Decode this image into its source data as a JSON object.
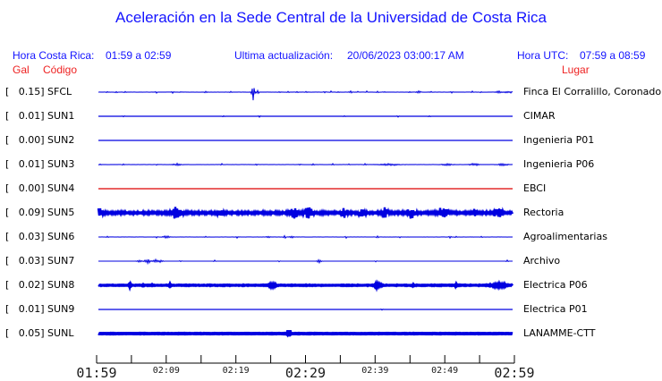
{
  "title": "Aceleración en la Sede Central de la Universidad de Costa Rica",
  "header": {
    "hora_cr_label": "Hora Costa Rica:",
    "hora_cr_value": "01:59 a 02:59",
    "update_label": "Ultima actualización:",
    "update_value": "20/06/2023 03:00:17 AM",
    "hora_utc_label": "Hora UTC:",
    "hora_utc_value": "07:59 a 08:59"
  },
  "columns": {
    "gal": "Gal",
    "codigo": "Código",
    "lugar": "Lugar"
  },
  "colors": {
    "text_blue": "#1414ff",
    "text_red": "#ee2222",
    "trace_blue": "#0000e0",
    "trace_red": "#dd0000",
    "axis_black": "#000000"
  },
  "chart_data": {
    "type": "line",
    "subtype": "seismogram-multitrace",
    "title": "Aceleración en la Sede Central de la Universidad de Costa Rica",
    "time_range_local": [
      "01:59",
      "02:59"
    ],
    "time_range_utc": [
      "07:59",
      "08:59"
    ],
    "x_axis": {
      "tick_interval_minutes": 5,
      "tick_count": 13,
      "labels": [
        {
          "text": "01:59",
          "size": "big"
        },
        {
          "text": "02:09",
          "size": "small"
        },
        {
          "text": "02:19",
          "size": "small"
        },
        {
          "text": "02:29",
          "size": "big"
        },
        {
          "text": "02:39",
          "size": "small"
        },
        {
          "text": "02:49",
          "size": "small"
        },
        {
          "text": "02:59",
          "size": "big"
        }
      ]
    },
    "events_format": "[x_px_from_trace_start, peak_amplitude_px, width_px]",
    "stations": [
      {
        "gal_label": "[   0.15]",
        "gal": 0.15,
        "code": "SFCL",
        "place": "Finca El Corralillo, Coronado",
        "color": "blue",
        "thickness": 1,
        "noise": 0.25,
        "events": [
          [
            10,
            1,
            1
          ],
          [
            20,
            1,
            1
          ],
          [
            30,
            0.8,
            1
          ],
          [
            65,
            0.9,
            1
          ],
          [
            83,
            1,
            1
          ],
          [
            92,
            1,
            1
          ],
          [
            120,
            0.9,
            1
          ],
          [
            148,
            1.1,
            1
          ],
          [
            173,
            9,
            1.6
          ],
          [
            178,
            3,
            1
          ],
          [
            202,
            1,
            1
          ],
          [
            212,
            1,
            1
          ],
          [
            222,
            1,
            1
          ],
          [
            232,
            0.9,
            1
          ],
          [
            253,
            1,
            1
          ],
          [
            260,
            1,
            1
          ],
          [
            268,
            1,
            1
          ],
          [
            282,
            1.2,
            1.5
          ],
          [
            290,
            1,
            1
          ],
          [
            300,
            1,
            1
          ],
          [
            312,
            1,
            1
          ],
          [
            320,
            0.9,
            1
          ],
          [
            348,
            1,
            1
          ],
          [
            358,
            1.4,
            2
          ],
          [
            372,
            1,
            1
          ],
          [
            395,
            0.9,
            1
          ],
          [
            418,
            1,
            1
          ],
          [
            428,
            1,
            1
          ],
          [
            448,
            1.4,
            3
          ],
          [
            456,
            1.2,
            2
          ],
          [
            461,
            1,
            1
          ]
        ]
      },
      {
        "gal_label": "[   0.01]",
        "gal": 0.01,
        "code": "SUN1",
        "place": "CIMAR",
        "color": "blue",
        "thickness": 1.2,
        "noise": 0.1,
        "events": [
          [
            28,
            1,
            1
          ],
          [
            140,
            1,
            1
          ],
          [
            180,
            1,
            1
          ],
          [
            275,
            0.8,
            1
          ],
          [
            335,
            0.8,
            1
          ],
          [
            370,
            0.8,
            1
          ]
        ]
      },
      {
        "gal_label": "[   0.00]",
        "gal": 0.0,
        "code": "SUN2",
        "place": "Ingenieria P01",
        "color": "blue",
        "thickness": 1.2,
        "noise": 0.05,
        "events": []
      },
      {
        "gal_label": "[   0.01]",
        "gal": 0.01,
        "code": "SUN3",
        "place": "Ingenieria P06",
        "color": "blue",
        "thickness": 1,
        "noise": 0.25,
        "events": [
          [
            2,
            1,
            1
          ],
          [
            28,
            0.9,
            1
          ],
          [
            65,
            0.9,
            1
          ],
          [
            88,
            1.3,
            4
          ],
          [
            138,
            0.9,
            1
          ],
          [
            177,
            0.9,
            1
          ],
          [
            225,
            0.9,
            1
          ],
          [
            240,
            1.2,
            1
          ],
          [
            262,
            0.9,
            1
          ],
          [
            280,
            0.9,
            1
          ],
          [
            298,
            0.9,
            1
          ],
          [
            325,
            1.2,
            9
          ],
          [
            390,
            1.2,
            5
          ],
          [
            420,
            1.2,
            5
          ],
          [
            452,
            1.2,
            5
          ]
        ]
      },
      {
        "gal_label": "[   0.00]",
        "gal": 0.0,
        "code": "SUN4",
        "place": "EBCI",
        "color": "red",
        "thickness": 1.2,
        "noise": 0.03,
        "events": []
      },
      {
        "gal_label": "[   0.09]",
        "gal": 0.09,
        "code": "SUN5",
        "place": "Rectoria",
        "color": "blue",
        "thickness": 2.4,
        "noise": 1.5,
        "events": [
          [
            1,
            5,
            3
          ],
          [
            87,
            6,
            5
          ],
          [
            137,
            4,
            3
          ],
          [
            218,
            6,
            4
          ],
          [
            235,
            7,
            4
          ],
          [
            275,
            5,
            3
          ],
          [
            295,
            5,
            3
          ],
          [
            320,
            5,
            3
          ],
          [
            350,
            6,
            4
          ],
          [
            385,
            7,
            5
          ],
          [
            420,
            4.5,
            3
          ],
          [
            447,
            6,
            4
          ]
        ]
      },
      {
        "gal_label": "[   0.03]",
        "gal": 0.03,
        "code": "SUN6",
        "place": "Agroalimentarias",
        "color": "blue",
        "thickness": 1,
        "noise": 0.2,
        "events": [
          [
            10,
            1.1,
            1
          ],
          [
            65,
            1.1,
            1
          ],
          [
            76,
            1.2,
            4
          ],
          [
            120,
            1.1,
            1
          ],
          [
            155,
            1.1,
            1
          ],
          [
            190,
            1.2,
            2
          ],
          [
            208,
            2.4,
            1.2
          ],
          [
            216,
            1.3,
            2
          ],
          [
            277,
            1.2,
            1
          ],
          [
            312,
            1.5,
            1
          ],
          [
            337,
            1.1,
            1
          ],
          [
            393,
            1.2,
            1
          ],
          [
            400,
            1.1,
            1
          ],
          [
            428,
            1.1,
            1
          ]
        ]
      },
      {
        "gal_label": "[   0.03]",
        "gal": 0.03,
        "code": "SUN7",
        "place": "Archivo",
        "color": "blue",
        "thickness": 1,
        "noise": 0.12,
        "events": [
          [
            46,
            2,
            2
          ],
          [
            55,
            2.8,
            3
          ],
          [
            64,
            2.2,
            3
          ],
          [
            70,
            1.6,
            2
          ],
          [
            92,
            0.9,
            1
          ],
          [
            130,
            1,
            1
          ],
          [
            202,
            1,
            1
          ],
          [
            247,
            2.6,
            2.2
          ],
          [
            310,
            0.9,
            1
          ],
          [
            457,
            1.2,
            1
          ]
        ]
      },
      {
        "gal_label": "[   0.02]",
        "gal": 0.02,
        "code": "SUN8",
        "place": "Electrica P06",
        "color": "blue",
        "thickness": 3,
        "noise": 0.5,
        "events": [
          [
            35,
            1.8,
            1.5
          ],
          [
            50,
            1.2,
            1
          ],
          [
            60,
            1.2,
            1
          ],
          [
            80,
            1.2,
            1
          ],
          [
            194,
            1.6,
            4
          ],
          [
            312,
            2,
            4
          ],
          [
            352,
            1.2,
            1
          ],
          [
            400,
            1.3,
            2
          ],
          [
            448,
            1.4,
            10
          ]
        ]
      },
      {
        "gal_label": "[   0.01]",
        "gal": 0.01,
        "code": "SUN9",
        "place": "Electrica P01",
        "color": "blue",
        "thickness": 1.2,
        "noise": 0.05,
        "events": [
          [
            317,
            1,
            1
          ]
        ]
      },
      {
        "gal_label": "[   0.05]",
        "gal": 0.05,
        "code": "SUNL",
        "place": "LANAMME-CTT",
        "color": "blue",
        "thickness": 3.6,
        "noise": 0.3,
        "events": [
          [
            213,
            5,
            1.6
          ]
        ]
      }
    ]
  }
}
